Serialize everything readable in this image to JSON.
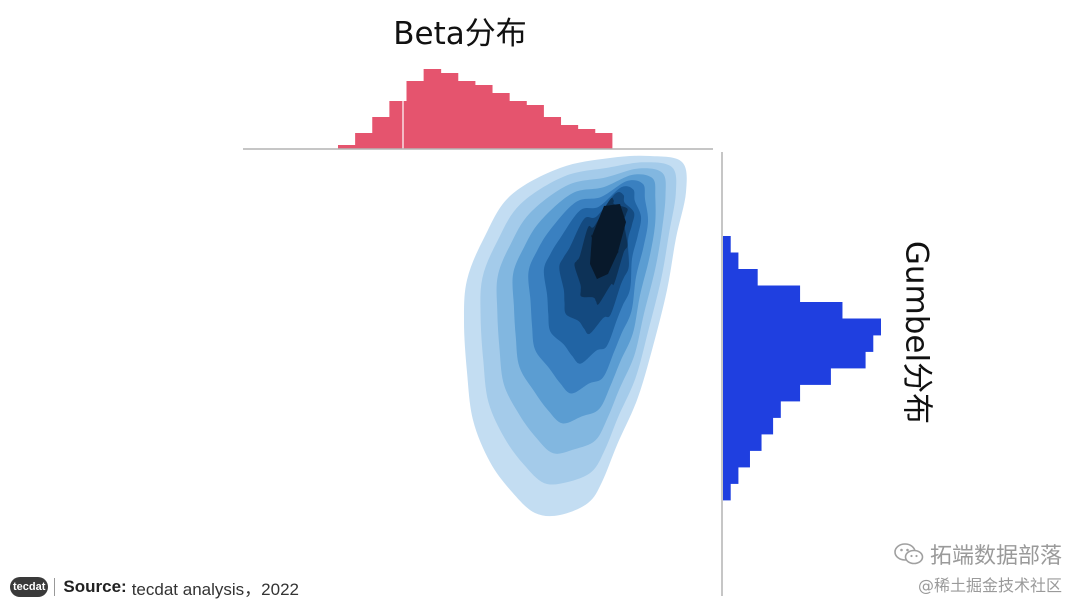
{
  "titles": {
    "top": "Beta分布",
    "right": "Gumbel分布"
  },
  "footer": {
    "logo_text": "tecdat",
    "source_label": "Source:",
    "source_text": "tecdat analysis，2022"
  },
  "watermark": {
    "line1": "拓端数据部落",
    "line2": "@稀土掘金技术社区",
    "icon": "wechat-icon"
  },
  "colors": {
    "top_hist": "#e5546e",
    "right_hist": "#1f3fe0",
    "axis": "#b3b3b3",
    "kde_levels": [
      "#c3ddf2",
      "#a4cbea",
      "#82b7e0",
      "#5b9dd2",
      "#3a80c0",
      "#2164a4",
      "#144a80",
      "#0d3257",
      "#08192b"
    ]
  },
  "chart_data": [
    {
      "type": "bar",
      "name": "top-marginal-histogram",
      "orientation": "vertical",
      "title": "Beta分布",
      "grid": false,
      "values": [
        1,
        4,
        8,
        12,
        17,
        20,
        19,
        17,
        16,
        14,
        12,
        11,
        8,
        6,
        5,
        4
      ]
    },
    {
      "type": "bar",
      "name": "right-marginal-histogram",
      "orientation": "horizontal",
      "title": "Gumbel分布",
      "grid": false,
      "values": [
        2,
        4,
        9,
        20,
        31,
        41,
        39,
        37,
        28,
        20,
        15,
        13,
        10,
        7,
        4,
        2
      ]
    },
    {
      "type": "heatmap",
      "name": "joint-kde",
      "levels": 9,
      "grid": false,
      "legend": "none"
    }
  ]
}
